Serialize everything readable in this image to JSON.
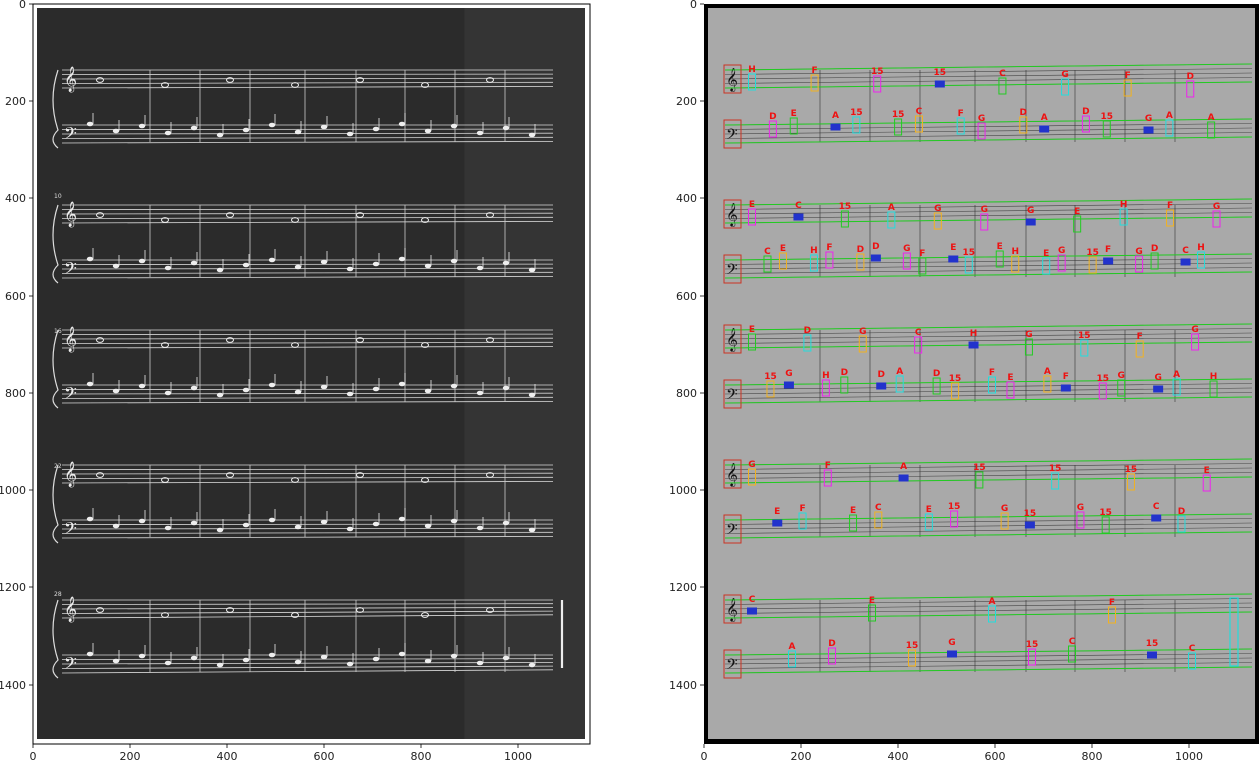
{
  "figure": {
    "left": {
      "image": "sheet music scan, white on dark, 5 grand-staff systems",
      "x_ticks": [
        "0",
        "200",
        "400",
        "600",
        "800",
        "1000"
      ],
      "y_ticks": [
        "0",
        "200",
        "400",
        "600",
        "800",
        "1000",
        "1200",
        "1400"
      ],
      "measure_numbers": [
        "10",
        "16",
        "22",
        "28"
      ]
    },
    "right": {
      "image": "sheet music scan, black on grey, staff lines and note detections overlaid",
      "x_ticks": [
        "0",
        "200",
        "400",
        "600",
        "800",
        "1000"
      ],
      "y_ticks": [
        "0",
        "200",
        "400",
        "600",
        "800",
        "1000",
        "1200",
        "1400"
      ],
      "colors": {
        "staff_line": "#22cc22",
        "clef_box": "#cc3322",
        "whole_half_box": "#22dddd",
        "quarter_box": "#ee22ee",
        "eighth_box": "#22cc22",
        "sixteenth_box": "#f2b21f",
        "rest_box": "#2233cc",
        "label": "#ee1111"
      },
      "note_labels": [
        {
          "text": "H"
        },
        {
          "text": "D"
        },
        {
          "text": "E"
        },
        {
          "text": "F"
        },
        {
          "text": "A"
        },
        {
          "text": "15"
        },
        {
          "text": "15"
        },
        {
          "text": "15"
        },
        {
          "text": "C"
        },
        {
          "text": "15"
        },
        {
          "text": "F"
        },
        {
          "text": "G"
        },
        {
          "text": "C"
        },
        {
          "text": "D"
        },
        {
          "text": "A"
        },
        {
          "text": "G"
        },
        {
          "text": "D"
        },
        {
          "text": "15"
        },
        {
          "text": "F"
        },
        {
          "text": "G"
        },
        {
          "text": "A"
        },
        {
          "text": "D"
        },
        {
          "text": "A"
        },
        {
          "text": "E"
        },
        {
          "text": "C"
        },
        {
          "text": "E"
        },
        {
          "text": "C"
        },
        {
          "text": "H"
        },
        {
          "text": "F"
        },
        {
          "text": "15"
        },
        {
          "text": "D"
        },
        {
          "text": "D"
        },
        {
          "text": "A"
        },
        {
          "text": "G"
        },
        {
          "text": "F"
        },
        {
          "text": "G"
        },
        {
          "text": "E"
        },
        {
          "text": "15"
        },
        {
          "text": "G"
        },
        {
          "text": "E"
        },
        {
          "text": "H"
        },
        {
          "text": "G"
        },
        {
          "text": "E"
        },
        {
          "text": "G"
        },
        {
          "text": "E"
        },
        {
          "text": "15"
        },
        {
          "text": "F"
        },
        {
          "text": "H"
        },
        {
          "text": "G"
        },
        {
          "text": "D"
        },
        {
          "text": "F"
        },
        {
          "text": "C"
        },
        {
          "text": "H"
        },
        {
          "text": "G"
        },
        {
          "text": "E"
        },
        {
          "text": "15"
        },
        {
          "text": "G"
        },
        {
          "text": "D"
        },
        {
          "text": "H"
        },
        {
          "text": "D"
        },
        {
          "text": "G"
        },
        {
          "text": "D"
        },
        {
          "text": "A"
        },
        {
          "text": "C"
        },
        {
          "text": "D"
        },
        {
          "text": "15"
        },
        {
          "text": "H"
        },
        {
          "text": "F"
        },
        {
          "text": "E"
        },
        {
          "text": "G"
        },
        {
          "text": "A"
        },
        {
          "text": "F"
        },
        {
          "text": "15"
        },
        {
          "text": "15"
        },
        {
          "text": "G"
        },
        {
          "text": "F"
        },
        {
          "text": "G"
        },
        {
          "text": "A"
        },
        {
          "text": "G"
        },
        {
          "text": "H"
        },
        {
          "text": "G"
        },
        {
          "text": "E"
        },
        {
          "text": "F"
        },
        {
          "text": "F"
        },
        {
          "text": "E"
        },
        {
          "text": "C"
        },
        {
          "text": "A"
        },
        {
          "text": "E"
        },
        {
          "text": "15"
        },
        {
          "text": "15"
        },
        {
          "text": "G"
        },
        {
          "text": "15"
        },
        {
          "text": "15"
        },
        {
          "text": "G"
        },
        {
          "text": "15"
        },
        {
          "text": "15"
        },
        {
          "text": "C"
        },
        {
          "text": "D"
        },
        {
          "text": "E"
        },
        {
          "text": "C"
        },
        {
          "text": "A"
        },
        {
          "text": "D"
        },
        {
          "text": "E"
        },
        {
          "text": "15"
        },
        {
          "text": "G"
        },
        {
          "text": "A"
        },
        {
          "text": "15"
        },
        {
          "text": "C"
        },
        {
          "text": "F"
        },
        {
          "text": "15"
        },
        {
          "text": "C"
        },
        {
          "text": "H"
        },
        {
          "text": "E"
        },
        {
          "text": "A"
        },
        {
          "text": "C"
        },
        {
          "text": "H"
        },
        {
          "text": "E"
        },
        {
          "text": "G"
        },
        {
          "text": "E"
        },
        {
          "text": "G"
        },
        {
          "text": "C"
        },
        {
          "text": "H"
        },
        {
          "text": "C"
        },
        {
          "text": "E"
        },
        {
          "text": "F"
        },
        {
          "text": "F"
        },
        {
          "text": "15"
        },
        {
          "text": "A"
        }
      ]
    }
  }
}
